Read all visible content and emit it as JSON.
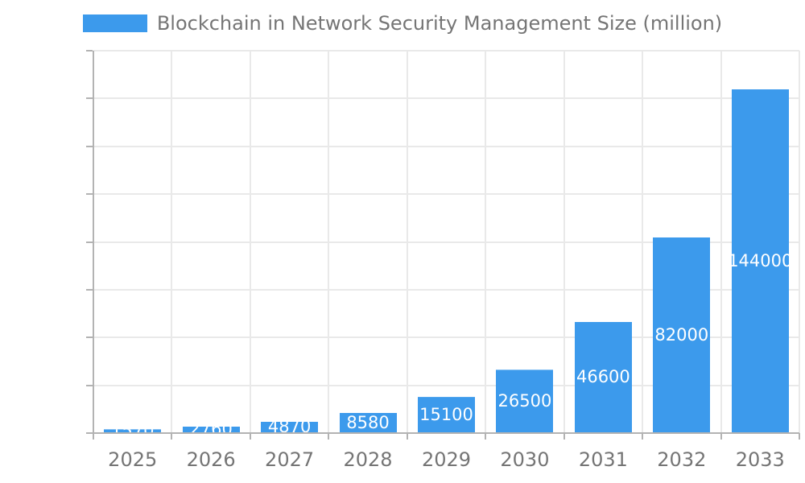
{
  "legend": {
    "swatch_color": "#3c9aec",
    "label": "Blockchain in Network Security Management Size (million)"
  },
  "colors": {
    "bar": "#3c9aec",
    "bar_label": "#ffffff",
    "grid": "#e9e9e9",
    "axis": "#b3b3b3",
    "tick_label": "#757575",
    "title": "#757575",
    "background": "#ffffff"
  },
  "chart_data": {
    "type": "bar",
    "title": "Blockchain in Network Security Management Size (million)",
    "categories": [
      "2025",
      "2026",
      "2027",
      "2028",
      "2029",
      "2030",
      "2031",
      "2032",
      "2033"
    ],
    "values": [
      1570,
      2760,
      4870,
      8580,
      15100,
      26500,
      46600,
      82000,
      144000
    ],
    "xlabel": "",
    "ylabel": "",
    "ylim": [
      0,
      160000
    ],
    "yticks": [
      0,
      20000,
      40000,
      60000,
      80000,
      100000,
      120000,
      140000,
      160000
    ],
    "grid": true,
    "legend_position": "top",
    "bar_label_position": "center-inside",
    "bar_label_color": "#ffffff"
  }
}
